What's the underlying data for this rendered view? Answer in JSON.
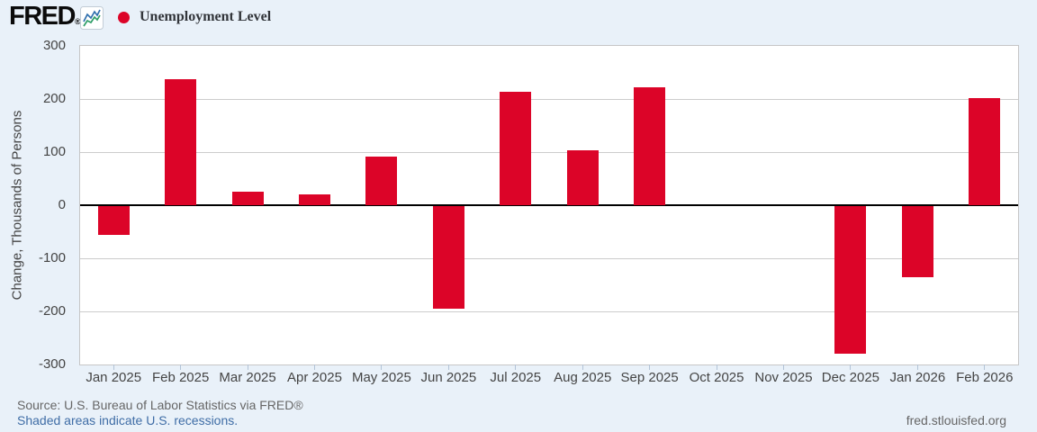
{
  "header": {
    "logo": "FRED",
    "registered_mark": "®",
    "legend_label": "Unemployment Level"
  },
  "chart_data": {
    "type": "bar",
    "title": "Unemployment Level",
    "ylabel": "Change, Thousands of Persons",
    "categories": [
      "Jan 2025",
      "Feb 2025",
      "Mar 2025",
      "Apr 2025",
      "May 2025",
      "Jun 2025",
      "Jul 2025",
      "Aug 2025",
      "Sep 2025",
      "Oct 2025",
      "Nov 2025",
      "Dec 2025",
      "Jan 2026",
      "Feb 2026"
    ],
    "values": [
      -55,
      237,
      25,
      20,
      92,
      -194,
      214,
      103,
      222,
      0,
      0,
      -278,
      -134,
      202
    ],
    "ylim": [
      -300,
      300
    ],
    "ytick_interval": 100,
    "y_tick_labels": [
      "300",
      "200",
      "100",
      "0",
      "-100",
      "-200",
      "-300"
    ],
    "bar_color": "#dc0428",
    "grid": true,
    "gridline_color": "#cccccc",
    "zero_line_color": "#000000",
    "background_color": "#e9f1f9",
    "plot_background": "#ffffff",
    "legend_position": "top-left"
  },
  "footer": {
    "source": "Source: U.S. Bureau of Labor Statistics via FRED®",
    "recessions_note": "Shaded areas indicate U.S. recessions.",
    "site": "fred.stlouisfed.org"
  }
}
